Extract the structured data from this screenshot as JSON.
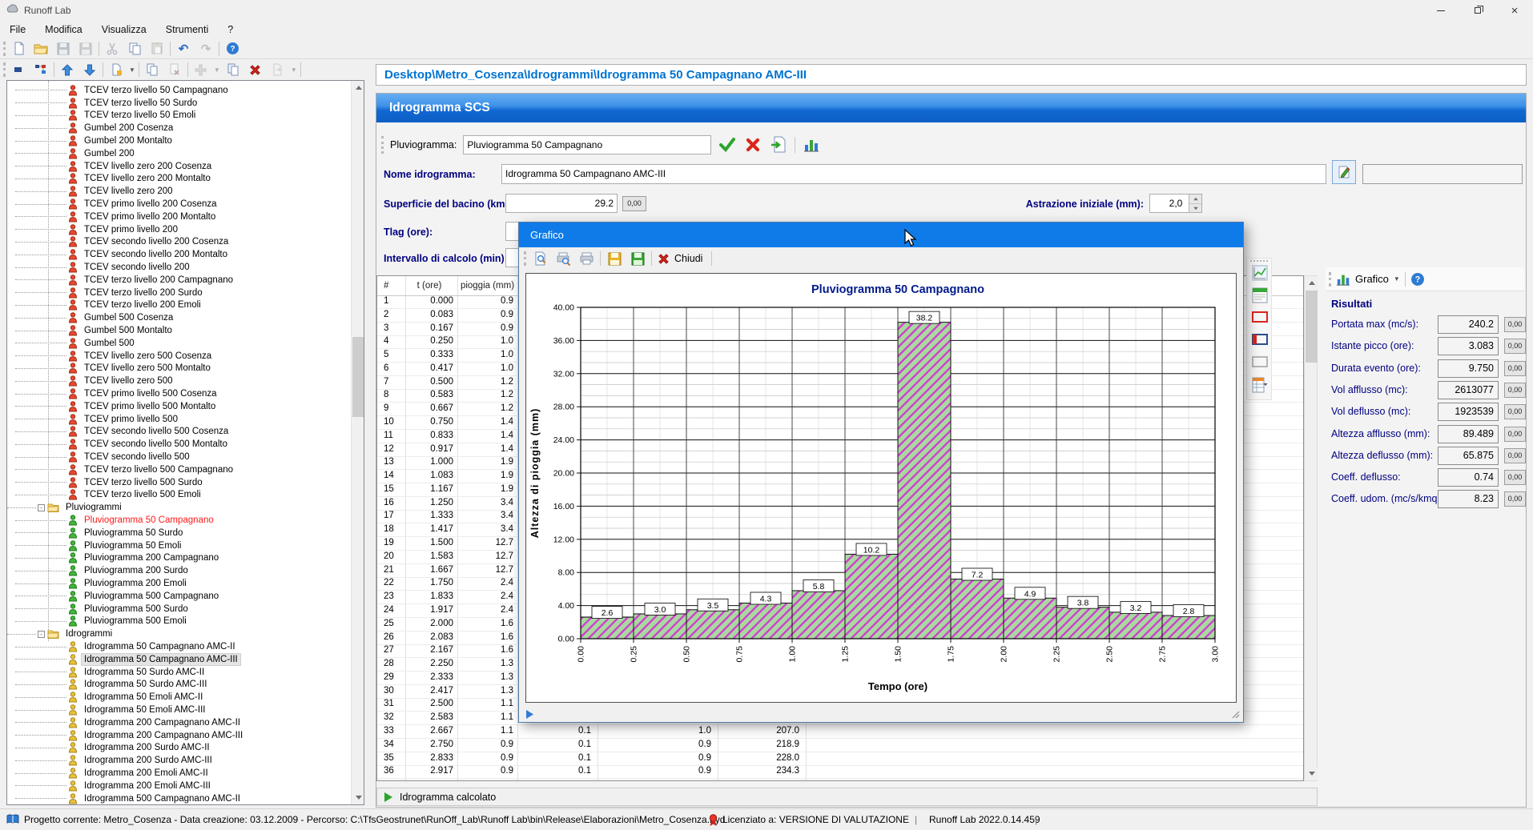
{
  "window": {
    "title": "Runoff Lab"
  },
  "menu": {
    "items": [
      "File",
      "Modifica",
      "Visualizza",
      "Strumenti",
      "?"
    ]
  },
  "breadcrumb": "Desktop\\Metro_Cosenza\\Idrogrammi\\Idrogramma 50 Campagnano AMC-III",
  "tree": {
    "items": [
      {
        "label": "TCEV terzo livello 50 Campagnano",
        "type": "r"
      },
      {
        "label": "TCEV terzo livello 50 Surdo",
        "type": "r"
      },
      {
        "label": "TCEV terzo livello 50 Emoli",
        "type": "r"
      },
      {
        "label": "Gumbel 200 Cosenza",
        "type": "r"
      },
      {
        "label": "Gumbel 200 Montalto",
        "type": "r"
      },
      {
        "label": "Gumbel 200",
        "type": "r"
      },
      {
        "label": "TCEV livello zero 200 Cosenza",
        "type": "r"
      },
      {
        "label": "TCEV livello zero 200 Montalto",
        "type": "r"
      },
      {
        "label": "TCEV livello zero 200",
        "type": "r"
      },
      {
        "label": "TCEV primo livello 200 Cosenza",
        "type": "r"
      },
      {
        "label": "TCEV primo livello 200 Montalto",
        "type": "r"
      },
      {
        "label": "TCEV primo livello 200",
        "type": "r"
      },
      {
        "label": "TCEV secondo livello 200 Cosenza",
        "type": "r"
      },
      {
        "label": "TCEV secondo livello 200 Montalto",
        "type": "r"
      },
      {
        "label": "TCEV secondo livello 200",
        "type": "r"
      },
      {
        "label": "TCEV terzo livello 200 Campagnano",
        "type": "r"
      },
      {
        "label": "TCEV terzo livello 200 Surdo",
        "type": "r"
      },
      {
        "label": "TCEV terzo livello 200 Emoli",
        "type": "r"
      },
      {
        "label": "Gumbel 500 Cosenza",
        "type": "r"
      },
      {
        "label": "Gumbel 500 Montalto",
        "type": "r"
      },
      {
        "label": "Gumbel 500",
        "type": "r"
      },
      {
        "label": "TCEV livello zero 500 Cosenza",
        "type": "r"
      },
      {
        "label": "TCEV livello zero 500 Montalto",
        "type": "r"
      },
      {
        "label": "TCEV livello zero 500",
        "type": "r"
      },
      {
        "label": "TCEV primo livello 500 Cosenza",
        "type": "r"
      },
      {
        "label": "TCEV primo livello 500 Montalto",
        "type": "r"
      },
      {
        "label": "TCEV primo livello 500",
        "type": "r"
      },
      {
        "label": "TCEV secondo livello 500 Cosenza",
        "type": "r"
      },
      {
        "label": "TCEV secondo livello 500 Montalto",
        "type": "r"
      },
      {
        "label": "TCEV secondo livello 500",
        "type": "r"
      },
      {
        "label": "TCEV terzo livello 500 Campagnano",
        "type": "r"
      },
      {
        "label": "TCEV terzo livello 500 Surdo",
        "type": "r"
      },
      {
        "label": "TCEV terzo livello 500 Emoli",
        "type": "r"
      },
      {
        "label": "Pluviogrammi",
        "type": "f"
      },
      {
        "label": "Pluviogramma 50 Campagnano",
        "type": "g",
        "red": true
      },
      {
        "label": "Pluviogramma 50 Surdo",
        "type": "g"
      },
      {
        "label": "Pluviogramma 50 Emoli",
        "type": "g"
      },
      {
        "label": "Pluviogramma 200 Campagnano",
        "type": "g"
      },
      {
        "label": "Pluviogramma 200 Surdo",
        "type": "g"
      },
      {
        "label": "Pluviogramma 200 Emoli",
        "type": "g"
      },
      {
        "label": "Pluviogramma 500 Campagnano",
        "type": "g"
      },
      {
        "label": "Pluviogramma 500 Surdo",
        "type": "g"
      },
      {
        "label": "Pluviogramma 500 Emoli",
        "type": "g"
      },
      {
        "label": "Idrogrammi",
        "type": "f"
      },
      {
        "label": "Idrogramma 50 Campagnano AMC-II",
        "type": "y"
      },
      {
        "label": "Idrogramma 50 Campagnano AMC-III",
        "type": "y",
        "sel": true
      },
      {
        "label": "Idrogramma 50 Surdo AMC-II",
        "type": "y"
      },
      {
        "label": "Idrogramma 50 Surdo AMC-III",
        "type": "y"
      },
      {
        "label": "Idrogramma 50 Emoli AMC-II",
        "type": "y"
      },
      {
        "label": "Idrogramma 50 Emoli AMC-III",
        "type": "y"
      },
      {
        "label": "Idrogramma 200 Campagnano AMC-II",
        "type": "y"
      },
      {
        "label": "Idrogramma 200 Campagnano AMC-III",
        "type": "y"
      },
      {
        "label": "Idrogramma 200 Surdo AMC-II",
        "type": "y"
      },
      {
        "label": "Idrogramma 200 Surdo AMC-III",
        "type": "y"
      },
      {
        "label": "Idrogramma 200 Emoli AMC-II",
        "type": "y"
      },
      {
        "label": "Idrogramma 200 Emoli AMC-III",
        "type": "y"
      },
      {
        "label": "Idrogramma 500 Campagnano AMC-II",
        "type": "y"
      }
    ]
  },
  "scs": {
    "title": "Idrogramma SCS",
    "pluviogramma_label": "Pluviogramma:",
    "pluviogramma_value": "Pluviogramma 50 Campagnano",
    "nome_label": "Nome idrogramma:",
    "nome_value": "Idrogramma 50 Campagnano AMC-III",
    "superficie_label": "Superficie del bacino (kmq):",
    "superficie_value": "29.2",
    "astrazione_label": "Astrazione iniziale (mm):",
    "astrazione_value": "2,0",
    "tlag_label": "Tlag (ore):",
    "intervallo_label": "Intervallo di calcolo (min):",
    "format_button": "0,00",
    "status_row": "Idrogramma calcolato"
  },
  "table": {
    "headers": [
      "#",
      "t (ore)",
      "pioggia (mm)"
    ],
    "rows": [
      [
        "1",
        "0.000",
        "0.9",
        "",
        "",
        ""
      ],
      [
        "2",
        "0.083",
        "0.9",
        "",
        "",
        ""
      ],
      [
        "3",
        "0.167",
        "0.9",
        "",
        "",
        ""
      ],
      [
        "4",
        "0.250",
        "1.0",
        "",
        "",
        ""
      ],
      [
        "5",
        "0.333",
        "1.0",
        "",
        "",
        ""
      ],
      [
        "6",
        "0.417",
        "1.0",
        "",
        "",
        ""
      ],
      [
        "7",
        "0.500",
        "1.2",
        "",
        "",
        ""
      ],
      [
        "8",
        "0.583",
        "1.2",
        "",
        "",
        ""
      ],
      [
        "9",
        "0.667",
        "1.2",
        "",
        "",
        ""
      ],
      [
        "10",
        "0.750",
        "1.4",
        "",
        "",
        ""
      ],
      [
        "11",
        "0.833",
        "1.4",
        "",
        "",
        ""
      ],
      [
        "12",
        "0.917",
        "1.4",
        "",
        "",
        ""
      ],
      [
        "13",
        "1.000",
        "1.9",
        "",
        "",
        ""
      ],
      [
        "14",
        "1.083",
        "1.9",
        "",
        "",
        ""
      ],
      [
        "15",
        "1.167",
        "1.9",
        "",
        "",
        ""
      ],
      [
        "16",
        "1.250",
        "3.4",
        "",
        "",
        ""
      ],
      [
        "17",
        "1.333",
        "3.4",
        "",
        "",
        ""
      ],
      [
        "18",
        "1.417",
        "3.4",
        "",
        "",
        ""
      ],
      [
        "19",
        "1.500",
        "12.7",
        "",
        "",
        ""
      ],
      [
        "20",
        "1.583",
        "12.7",
        "",
        "",
        ""
      ],
      [
        "21",
        "1.667",
        "12.7",
        "",
        "",
        ""
      ],
      [
        "22",
        "1.750",
        "2.4",
        "",
        "",
        ""
      ],
      [
        "23",
        "1.833",
        "2.4",
        "",
        "",
        ""
      ],
      [
        "24",
        "1.917",
        "2.4",
        "",
        "",
        ""
      ],
      [
        "25",
        "2.000",
        "1.6",
        "",
        "",
        ""
      ],
      [
        "26",
        "2.083",
        "1.6",
        "",
        "",
        ""
      ],
      [
        "27",
        "2.167",
        "1.6",
        "",
        "",
        ""
      ],
      [
        "28",
        "2.250",
        "1.3",
        "",
        "",
        ""
      ],
      [
        "29",
        "2.333",
        "1.3",
        "",
        "",
        ""
      ],
      [
        "30",
        "2.417",
        "1.3",
        "",
        "",
        ""
      ],
      [
        "31",
        "2.500",
        "1.1",
        "",
        "",
        ""
      ],
      [
        "32",
        "2.583",
        "1.1",
        "",
        "",
        ""
      ],
      [
        "33",
        "2.667",
        "1.1",
        "0.1",
        "1.0",
        "207.0"
      ],
      [
        "34",
        "2.750",
        "0.9",
        "0.1",
        "0.9",
        "218.9"
      ],
      [
        "35",
        "2.833",
        "0.9",
        "0.1",
        "0.9",
        "228.0"
      ],
      [
        "36",
        "2.917",
        "0.9",
        "0.1",
        "0.9",
        "234.3"
      ]
    ]
  },
  "dialog": {
    "title": "Grafico",
    "chiudi_label": "Chiudi"
  },
  "chart_data": {
    "type": "bar",
    "title": "Pluviogramma 50 Campagnano",
    "xlabel": "Tempo (ore)",
    "ylabel": "Altezza di pioggia (mm)",
    "ylim": [
      0,
      40
    ],
    "y_major_step": 4,
    "xlim": [
      0,
      3
    ],
    "bin_width": 0.25,
    "xticks": [
      "0.00",
      "0.25",
      "0.50",
      "0.75",
      "1.00",
      "1.25",
      "1.50",
      "1.75",
      "2.00",
      "2.25",
      "2.50",
      "2.75",
      "3.00"
    ],
    "values": [
      2.6,
      3.0,
      3.5,
      4.3,
      5.8,
      10.2,
      38.2,
      7.2,
      4.9,
      3.8,
      3.2,
      2.8
    ],
    "bar_fill": "#a9d9a0",
    "hatch_color": "#cf3ecf",
    "grid": true,
    "legend": "none"
  },
  "results": {
    "toolbar_label": "Grafico",
    "title": "Risultati",
    "format_button": "0,00",
    "rows": [
      {
        "label": "Portata max (mc/s):",
        "value": "240.2"
      },
      {
        "label": "Istante picco (ore):",
        "value": "3.083"
      },
      {
        "label": "Durata evento (ore):",
        "value": "9.750"
      },
      {
        "label": "Vol afflusso (mc):",
        "value": "2613077"
      },
      {
        "label": "Vol deflusso (mc):",
        "value": "1923539"
      },
      {
        "label": "Altezza afflusso (mm):",
        "value": "89.489"
      },
      {
        "label": "Altezza deflusso (mm):",
        "value": "65.875"
      },
      {
        "label": "Coeff. deflusso:",
        "value": "0.74"
      },
      {
        "label": "Coeff. udom. (mc/s/kmq):",
        "value": "8.23"
      }
    ]
  },
  "statusbar": {
    "project": "Progetto corrente: Metro_Cosenza - Data creazione: 03.12.2009 - Percorso: C:\\TfsGeostrunet\\RunOff_Lab\\Runoff Lab\\bin\\Release\\Elaborazioni\\Metro_Cosenza.hyd",
    "license": "Licenziato a: VERSIONE DI VALUTAZIONE",
    "separator": "|",
    "version": "Runoff Lab 2022.0.14.459"
  }
}
